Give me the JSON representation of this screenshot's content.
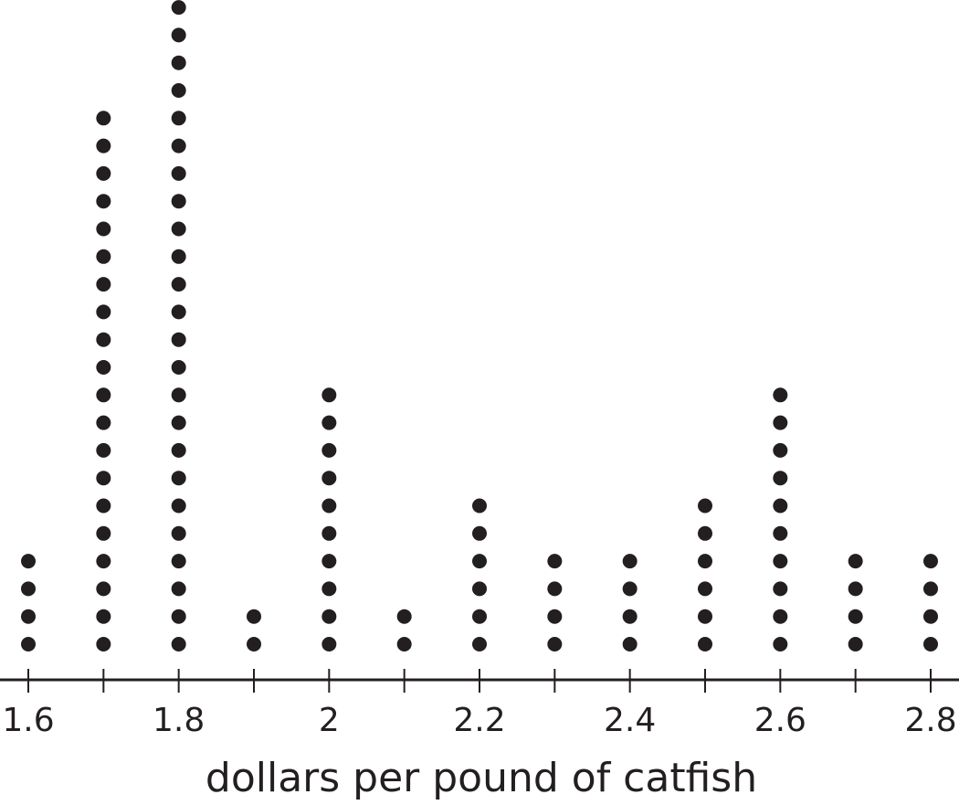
{
  "chart_data": {
    "type": "dot plot",
    "title": "",
    "xlabel": "dollars per pound of catfish",
    "ylabel": "",
    "xlim": [
      1.6,
      2.8
    ],
    "x_tick_step": 0.1,
    "tick_labels": [
      "1.6",
      "1.8",
      "2",
      "2.2",
      "2.4",
      "2.6",
      "2.8"
    ],
    "tick_label_values": [
      1.6,
      1.8,
      2.0,
      2.2,
      2.4,
      2.6,
      2.8
    ],
    "x": [
      1.6,
      1.7,
      1.8,
      1.9,
      2.0,
      2.1,
      2.2,
      2.3,
      2.4,
      2.5,
      2.6,
      2.7,
      2.8
    ],
    "counts": [
      4,
      20,
      24,
      2,
      10,
      2,
      6,
      4,
      4,
      6,
      10,
      4,
      4
    ],
    "dot_color": "#231f20",
    "grid": false
  }
}
